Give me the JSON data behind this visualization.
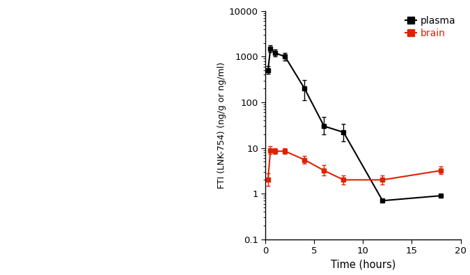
{
  "plasma_x": [
    0.25,
    0.5,
    1,
    2,
    4,
    6,
    8,
    12,
    18
  ],
  "plasma_y": [
    500,
    1500,
    1200,
    1000,
    200,
    30,
    22,
    0.7,
    0.9
  ],
  "plasma_yerr_low": [
    80,
    250,
    200,
    180,
    90,
    10,
    8,
    0.0,
    0.0
  ],
  "plasma_yerr_high": [
    120,
    300,
    250,
    220,
    110,
    18,
    12,
    0.0,
    0.0
  ],
  "brain_x": [
    0.25,
    0.5,
    1,
    2,
    4,
    6,
    8,
    12,
    18
  ],
  "brain_y": [
    2.0,
    9.0,
    8.5,
    8.5,
    5.5,
    3.2,
    2.0,
    2.0,
    3.2
  ],
  "brain_yerr_low": [
    0.5,
    1.5,
    1.2,
    1.2,
    1.0,
    0.7,
    0.4,
    0.4,
    0.5
  ],
  "brain_yerr_high": [
    0.8,
    2.0,
    1.5,
    1.5,
    1.2,
    1.0,
    0.5,
    0.5,
    0.7
  ],
  "plasma_color": "#000000",
  "brain_color": "#dd2200",
  "xlabel": "Time (hours)",
  "ylabel": "FTI (LNK-754) (ng/g or ng/ml)",
  "ylim_log": [
    0.1,
    10000
  ],
  "xlim": [
    0,
    20
  ],
  "xticks": [
    0,
    5,
    10,
    15,
    20
  ],
  "yticks": [
    0.1,
    1,
    10,
    100,
    1000,
    10000
  ],
  "ytick_labels": [
    "0.1",
    "1",
    "10",
    "100",
    "1000",
    "10000"
  ],
  "background_color": "#ffffff",
  "legend_labels": [
    "plasma",
    "brain"
  ]
}
